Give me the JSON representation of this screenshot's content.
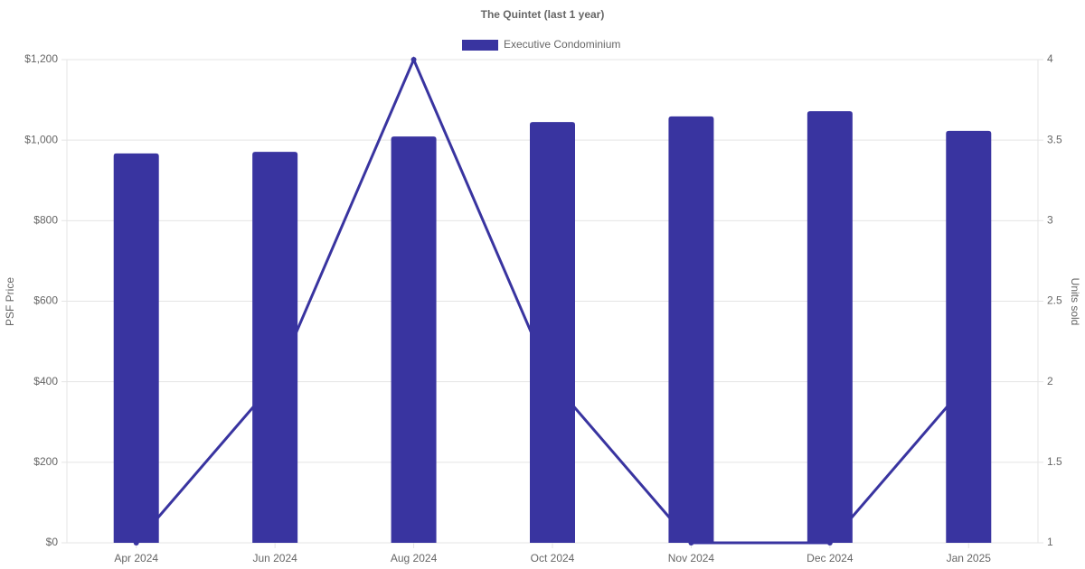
{
  "chart_data": {
    "type": "bar",
    "title": "The Quintet (last 1 year)",
    "categories": [
      "Apr 2024",
      "Jun 2024",
      "Aug 2024",
      "Oct 2024",
      "Nov 2024",
      "Dec 2024",
      "Jan 2025"
    ],
    "series": [
      {
        "name": "Executive Condominium",
        "type": "bar",
        "color": "#3934a0",
        "values": [
          967,
          971,
          1009,
          1045,
          1059,
          1072,
          1023
        ]
      },
      {
        "type": "line",
        "axis": "y2",
        "color": "#3934a0",
        "values": [
          1,
          2,
          4,
          2,
          1,
          1,
          2
        ]
      }
    ],
    "y_label": "PSF Price",
    "y2_label": "Units sold",
    "ylim": [
      0,
      1200
    ],
    "yticks": [
      {
        "value": 0,
        "label": "$0"
      },
      {
        "value": 200,
        "label": "$200"
      },
      {
        "value": 400,
        "label": "$400"
      },
      {
        "value": 600,
        "label": "$600"
      },
      {
        "value": 800,
        "label": "$800"
      },
      {
        "value": 1000,
        "label": "$1,000"
      },
      {
        "value": 1200,
        "label": "$1,200"
      }
    ],
    "y2lim": [
      1,
      4
    ],
    "y2ticks": [
      1,
      1.5,
      2,
      2.5,
      3,
      3.5,
      4
    ],
    "grid": true,
    "legend": "top"
  }
}
